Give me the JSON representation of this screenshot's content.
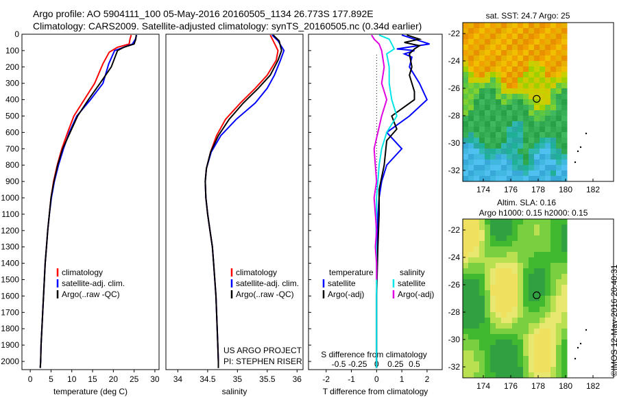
{
  "header": {
    "line1": "Argo profile: AO 5904111_100 05-May-2016 20160505_1134 26.773S 177.892E",
    "line2": "Climatology: CARS2009. Satellite-adjusted climatology: synTS_20160505.nc (0.34d earlier)"
  },
  "colors": {
    "climatology": "#ff0000",
    "satellite": "#0000ff",
    "argo": "#000000",
    "salinity_sat": "#00e5e5",
    "salinity_argo": "#e000e0"
  },
  "chart_data": [
    {
      "type": "line",
      "id": "temperature",
      "xlabel": "temperature (deg C)",
      "xlim": [
        -2,
        31
      ],
      "ylim": [
        2050,
        0
      ],
      "yticks": [
        0,
        100,
        200,
        300,
        400,
        500,
        600,
        700,
        800,
        900,
        1000,
        1100,
        1200,
        1300,
        1400,
        1500,
        1600,
        1700,
        1800,
        1900,
        2000
      ],
      "xticks": [
        0,
        5,
        10,
        15,
        20,
        25,
        30
      ],
      "legend": [
        "climatology",
        "satellite-adj. clim.",
        "Argo(..raw -QC)"
      ],
      "series": [
        {
          "name": "climatology",
          "color": "#ff0000",
          "points": [
            [
              24.3,
              5
            ],
            [
              24,
              30
            ],
            [
              23.8,
              60
            ],
            [
              21,
              80
            ],
            [
              19,
              110
            ],
            [
              17.5,
              180
            ],
            [
              15.5,
              300
            ],
            [
              13,
              400
            ],
            [
              10.5,
              500
            ],
            [
              9,
              600
            ],
            [
              7.6,
              700
            ],
            [
              6.5,
              800
            ],
            [
              5.6,
              900
            ],
            [
              5,
              1000
            ],
            [
              4.6,
              1100
            ],
            [
              4.2,
              1200
            ],
            [
              3.9,
              1300
            ],
            [
              3.6,
              1400
            ],
            [
              3.4,
              1500
            ],
            [
              3.2,
              1600
            ],
            [
              3,
              1700
            ],
            [
              2.8,
              1800
            ],
            [
              2.6,
              1900
            ],
            [
              2.5,
              2000
            ],
            [
              2.4,
              2040
            ]
          ]
        },
        {
          "name": "satellite-adj. clim.",
          "color": "#0000ff",
          "points": [
            [
              25.6,
              5
            ],
            [
              25.3,
              30
            ],
            [
              24.6,
              60
            ],
            [
              22.5,
              80
            ],
            [
              20.3,
              100
            ],
            [
              18.9,
              180
            ],
            [
              17.5,
              300
            ],
            [
              14.5,
              400
            ],
            [
              11.2,
              500
            ],
            [
              9.4,
              600
            ],
            [
              8,
              700
            ],
            [
              6.8,
              800
            ],
            [
              5.8,
              900
            ],
            [
              5.1,
              1000
            ],
            [
              4.6,
              1100
            ],
            [
              4.2,
              1200
            ],
            [
              3.9,
              1300
            ],
            [
              3.6,
              1400
            ],
            [
              3.4,
              1500
            ],
            [
              3.2,
              1600
            ],
            [
              3,
              1700
            ],
            [
              2.8,
              1800
            ],
            [
              2.6,
              1900
            ],
            [
              2.5,
              2000
            ],
            [
              2.4,
              2040
            ]
          ]
        },
        {
          "name": "Argo(..raw -QC)",
          "color": "#000000",
          "points": [
            [
              25.5,
              5
            ],
            [
              25.4,
              30
            ],
            [
              25,
              60
            ],
            [
              22.5,
              80
            ],
            [
              21,
              100
            ],
            [
              19.5,
              200
            ],
            [
              16.8,
              300
            ],
            [
              14,
              400
            ],
            [
              11.4,
              500
            ],
            [
              9.6,
              600
            ],
            [
              7.8,
              700
            ],
            [
              6.6,
              800
            ],
            [
              5.7,
              900
            ],
            [
              5,
              1000
            ],
            [
              4.6,
              1100
            ],
            [
              4.2,
              1200
            ],
            [
              3.9,
              1300
            ],
            [
              3.6,
              1400
            ],
            [
              3.4,
              1500
            ],
            [
              3.2,
              1600
            ],
            [
              3,
              1700
            ],
            [
              2.8,
              1800
            ],
            [
              2.6,
              1900
            ],
            [
              2.5,
              2000
            ],
            [
              2.4,
              2040
            ]
          ]
        }
      ]
    },
    {
      "type": "line",
      "id": "salinity",
      "xlabel": "salinity",
      "xlim": [
        33.8,
        36.1
      ],
      "ylim": [
        2050,
        0
      ],
      "xticks": [
        34,
        34.5,
        35,
        35.5,
        36
      ],
      "legend": [
        "climatology",
        "satellite-adj. clim.",
        "Argo(..raw -QC)"
      ],
      "series": [
        {
          "name": "climatology",
          "color": "#ff0000",
          "points": [
            [
              35.55,
              5
            ],
            [
              35.6,
              40
            ],
            [
              35.68,
              100
            ],
            [
              35.65,
              160
            ],
            [
              35.5,
              250
            ],
            [
              35.3,
              330
            ],
            [
              35.05,
              420
            ],
            [
              34.8,
              520
            ],
            [
              34.65,
              620
            ],
            [
              34.55,
              720
            ],
            [
              34.48,
              820
            ],
            [
              34.46,
              900
            ],
            [
              34.47,
              1000
            ],
            [
              34.5,
              1100
            ],
            [
              34.54,
              1200
            ],
            [
              34.58,
              1300
            ],
            [
              34.6,
              1400
            ],
            [
              34.62,
              1500
            ],
            [
              34.64,
              1600
            ],
            [
              34.65,
              1700
            ],
            [
              34.66,
              1800
            ],
            [
              34.67,
              1900
            ],
            [
              34.68,
              2000
            ],
            [
              34.68,
              2040
            ]
          ]
        },
        {
          "name": "satellite-adj. clim.",
          "color": "#0000ff",
          "points": [
            [
              35.58,
              5
            ],
            [
              35.68,
              40
            ],
            [
              35.78,
              100
            ],
            [
              35.72,
              160
            ],
            [
              35.62,
              250
            ],
            [
              35.5,
              330
            ],
            [
              35.3,
              420
            ],
            [
              34.98,
              520
            ],
            [
              34.72,
              620
            ],
            [
              34.56,
              720
            ],
            [
              34.48,
              820
            ],
            [
              34.46,
              900
            ],
            [
              34.47,
              1000
            ],
            [
              34.5,
              1100
            ],
            [
              34.54,
              1200
            ],
            [
              34.58,
              1300
            ],
            [
              34.6,
              1400
            ],
            [
              34.62,
              1500
            ],
            [
              34.64,
              1600
            ],
            [
              34.65,
              1700
            ],
            [
              34.66,
              1800
            ],
            [
              34.67,
              1900
            ],
            [
              34.68,
              2000
            ],
            [
              34.68,
              2040
            ]
          ]
        },
        {
          "name": "Argo(..raw -QC)",
          "color": "#000000",
          "points": [
            [
              35.6,
              5
            ],
            [
              35.7,
              40
            ],
            [
              35.74,
              100
            ],
            [
              35.68,
              160
            ],
            [
              35.55,
              250
            ],
            [
              35.35,
              330
            ],
            [
              35.1,
              420
            ],
            [
              34.86,
              520
            ],
            [
              34.68,
              620
            ],
            [
              34.55,
              720
            ],
            [
              34.48,
              820
            ],
            [
              34.46,
              900
            ],
            [
              34.47,
              1000
            ],
            [
              34.5,
              1100
            ],
            [
              34.54,
              1200
            ],
            [
              34.58,
              1300
            ],
            [
              34.6,
              1400
            ],
            [
              34.62,
              1500
            ],
            [
              34.64,
              1600
            ],
            [
              34.65,
              1700
            ],
            [
              34.66,
              1800
            ],
            [
              34.67,
              1900
            ],
            [
              34.68,
              2000
            ],
            [
              34.68,
              2040
            ]
          ]
        }
      ],
      "annotation": [
        "US ARGO PROJECT",
        "PI: STEPHEN RISER"
      ]
    },
    {
      "type": "line",
      "id": "difference",
      "xlabel_bottom": "T difference from climatology",
      "xlabel_top": "S difference from climatology",
      "xlim": [
        -2.7,
        2.6
      ],
      "ylim": [
        2050,
        0
      ],
      "xticks_bottom": [
        -2,
        -1,
        0,
        1,
        2
      ],
      "xticks_top": [
        -0.5,
        -0.25,
        0,
        0.25,
        0.5
      ],
      "legend": {
        "temperature_heading": "temperature",
        "salinity_heading": "salinity",
        "entries": [
          "satellite",
          "Argo(-adj)",
          "satellite",
          "Argo(-adj)"
        ]
      },
      "series": [
        {
          "name": "T satellite",
          "color": "#0000ff",
          "points": [
            [
              1,
              5
            ],
            [
              1.3,
              20
            ],
            [
              2.1,
              60
            ],
            [
              0.8,
              90
            ],
            [
              1.5,
              100
            ],
            [
              1.1,
              120
            ],
            [
              1.4,
              140
            ],
            [
              1.3,
              200
            ],
            [
              1.7,
              300
            ],
            [
              2,
              400
            ],
            [
              1.3,
              500
            ],
            [
              0.4,
              600
            ],
            [
              1,
              700
            ],
            [
              0.4,
              800
            ],
            [
              0.2,
              900
            ],
            [
              0.1,
              1000
            ],
            [
              0.05,
              1100
            ],
            [
              0.02,
              1300
            ],
            [
              0,
              1600
            ],
            [
              0,
              2040
            ]
          ]
        },
        {
          "name": "T Argo(-adj)",
          "color": "#000000",
          "points": [
            [
              1.2,
              5
            ],
            [
              1.5,
              20
            ],
            [
              1.7,
              30
            ],
            [
              1.1,
              50
            ],
            [
              1.7,
              70
            ],
            [
              1.5,
              90
            ],
            [
              1.3,
              120
            ],
            [
              1.4,
              200
            ],
            [
              1.3,
              250
            ],
            [
              1.5,
              350
            ],
            [
              1.5,
              400
            ],
            [
              0.6,
              500
            ],
            [
              0.8,
              580
            ],
            [
              0.4,
              650
            ],
            [
              0.3,
              800
            ],
            [
              0.1,
              950
            ],
            [
              0.1,
              1100
            ],
            [
              0.05,
              1300
            ],
            [
              0,
              1600
            ],
            [
              0,
              2040
            ]
          ]
        },
        {
          "name": "S satellite",
          "color": "#00e5e5",
          "points": [
            [
              0.1,
              5
            ],
            [
              0.5,
              30
            ],
            [
              0.6,
              60
            ],
            [
              0.7,
              90
            ],
            [
              0.4,
              120
            ],
            [
              0.5,
              200
            ],
            [
              0.5,
              300
            ],
            [
              0.6,
              400
            ],
            [
              0.8,
              500
            ],
            [
              0.4,
              600
            ],
            [
              0.2,
              700
            ],
            [
              0.1,
              800
            ],
            [
              0.05,
              900
            ],
            [
              0,
              1000
            ],
            [
              -0.02,
              1200
            ],
            [
              0,
              1400
            ],
            [
              0,
              2040
            ]
          ]
        },
        {
          "name": "S Argo(-adj)",
          "color": "#e000e0",
          "points": [
            [
              -0.2,
              5
            ],
            [
              -0.1,
              30
            ],
            [
              0.1,
              60
            ],
            [
              0.2,
              100
            ],
            [
              0.3,
              200
            ],
            [
              0.2,
              300
            ],
            [
              0.4,
              400
            ],
            [
              0.2,
              500
            ],
            [
              -0.1,
              700
            ],
            [
              0,
              900
            ],
            [
              -0.1,
              1000
            ],
            [
              -0.05,
              1100
            ],
            [
              0,
              1200
            ],
            [
              -0.05,
              1300
            ],
            [
              0,
              1400
            ],
            [
              0,
              1500
            ]
          ]
        }
      ]
    },
    {
      "type": "heatmap",
      "id": "sst_map",
      "title": "sat. SST: 24.7  Argo: 25",
      "xticks": [
        174,
        176,
        178,
        180,
        182
      ],
      "yticks": [
        -22,
        -24,
        -26,
        -28,
        -30,
        -32
      ],
      "xlim": [
        172.5,
        183.5
      ],
      "ylim": [
        -32.8,
        -21.2
      ],
      "float_position": [
        177.89,
        -26.77
      ]
    },
    {
      "type": "heatmap",
      "id": "sla_map",
      "title": "Altim. SLA: 0.16",
      "subtitle": "Argo h1000: 0.15 h2000: 0.15",
      "xticks": [
        174,
        176,
        178,
        180,
        182
      ],
      "yticks": [
        -22,
        -24,
        -26,
        -28,
        -30,
        -32
      ],
      "xlim": [
        172.5,
        183.5
      ],
      "ylim": [
        -32.8,
        -21.2
      ],
      "float_position": [
        177.89,
        -26.77
      ]
    }
  ],
  "credit": "©IMOS 12-May-2016 20:40:31"
}
